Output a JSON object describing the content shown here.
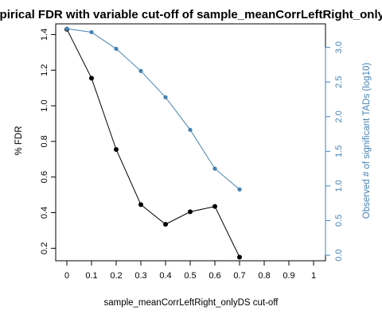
{
  "chart_data": {
    "type": "line",
    "title": "Empirical FDR with variable cut-off of sample_meanCorrLeftRight_onlyDS",
    "xlabel": "sample_meanCorrLeftRight_onlyDS cut-off",
    "ylabel_left": "% FDR",
    "ylabel_right": "Observed # of significant TADs (log10)",
    "x_ticks": [
      "0",
      "0.1",
      "0.2",
      "0.3",
      "0.4",
      "0.5",
      "0.6",
      "0.7",
      "0.8",
      "0.9",
      "1"
    ],
    "xlim": [
      0,
      1
    ],
    "ylim_left": [
      0.13,
      1.46
    ],
    "ylim_right": [
      -0.08,
      3.34
    ],
    "y_ticks_left": [
      "0.2",
      "0.4",
      "0.6",
      "0.8",
      "1.0",
      "1.2",
      "1.4"
    ],
    "y_ticks_right": [
      "0.0",
      "0.5",
      "1.0",
      "1.5",
      "2.0",
      "2.5",
      "3.0"
    ],
    "series": [
      {
        "axis": "left",
        "color": "#000000",
        "x": [
          0,
          0.1,
          0.2,
          0.3,
          0.4,
          0.5,
          0.6,
          0.7
        ],
        "values": [
          1.43,
          1.155,
          0.755,
          0.445,
          0.335,
          0.405,
          0.435,
          0.15
        ]
      },
      {
        "axis": "right",
        "color": "#4682b4",
        "x": [
          0,
          0.1,
          0.2,
          0.3,
          0.4,
          0.5,
          0.6,
          0.7
        ],
        "values": [
          3.27,
          3.22,
          2.98,
          2.66,
          2.28,
          1.81,
          1.25,
          0.95
        ]
      }
    ],
    "grid": false
  }
}
